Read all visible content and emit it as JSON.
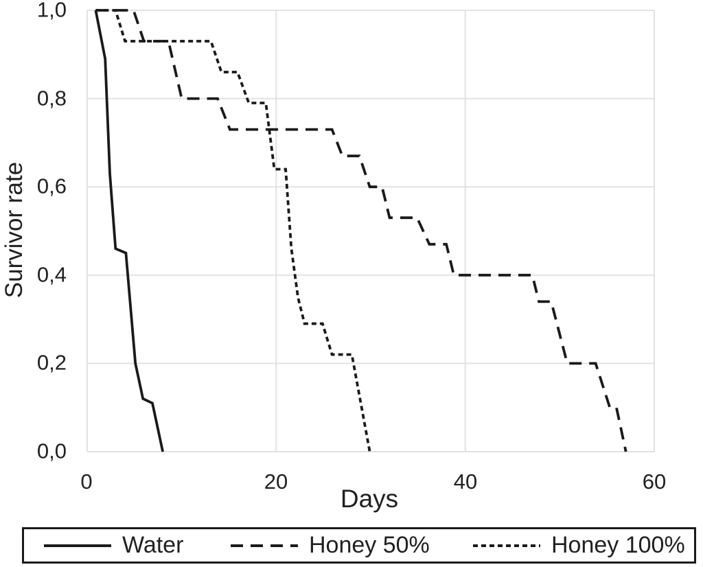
{
  "chart_data": {
    "type": "line",
    "subtype": "survival-step-curves",
    "title": "",
    "xlabel": "Days",
    "ylabel": "Survivor rate",
    "xlim": [
      0,
      60
    ],
    "ylim": [
      0.0,
      1.0
    ],
    "xticks": [
      0,
      20,
      40,
      60
    ],
    "xtick_labels": [
      "0",
      "20",
      "40",
      "60"
    ],
    "yticks": [
      1.0,
      0.8,
      0.6,
      0.4,
      0.2,
      0.0
    ],
    "ytick_labels": [
      "1,0",
      "0,8",
      "0,6",
      "0,4",
      "0,2",
      "0,0"
    ],
    "decimal_separator": ",",
    "grid": {
      "horizontal": true,
      "vertical": true,
      "color": "#e2e2e2"
    },
    "line_color": "#1a1a1a",
    "legend_position": "bottom-box",
    "series": [
      {
        "name": "Water",
        "dash": "solid",
        "points": [
          [
            0.9,
            1.0
          ],
          [
            1.9,
            0.89
          ],
          [
            2.4,
            0.63
          ],
          [
            3.0,
            0.46
          ],
          [
            4.1,
            0.45
          ],
          [
            5.1,
            0.2
          ],
          [
            5.9,
            0.12
          ],
          [
            6.9,
            0.11
          ],
          [
            8.0,
            0.0
          ]
        ]
      },
      {
        "name": "Honey 50%",
        "dash": "long-dash",
        "points": [
          [
            0.9,
            1.0
          ],
          [
            4.9,
            1.0
          ],
          [
            6.0,
            0.93
          ],
          [
            8.6,
            0.93
          ],
          [
            10.0,
            0.8
          ],
          [
            13.8,
            0.8
          ],
          [
            15.1,
            0.73
          ],
          [
            25.9,
            0.73
          ],
          [
            27.0,
            0.67
          ],
          [
            28.8,
            0.67
          ],
          [
            29.9,
            0.6
          ],
          [
            31.2,
            0.6
          ],
          [
            32.0,
            0.53
          ],
          [
            34.9,
            0.53
          ],
          [
            36.2,
            0.47
          ],
          [
            38.0,
            0.47
          ],
          [
            38.8,
            0.4
          ],
          [
            47.1,
            0.4
          ],
          [
            47.8,
            0.34
          ],
          [
            49.1,
            0.34
          ],
          [
            50.8,
            0.2
          ],
          [
            53.8,
            0.2
          ],
          [
            55.3,
            0.1
          ],
          [
            56.0,
            0.1
          ],
          [
            57.0,
            0.0
          ]
        ]
      },
      {
        "name": "Honey 100%",
        "dash": "short-dash",
        "points": [
          [
            0.9,
            1.0
          ],
          [
            3.0,
            1.0
          ],
          [
            4.0,
            0.93
          ],
          [
            13.1,
            0.93
          ],
          [
            14.2,
            0.86
          ],
          [
            15.9,
            0.86
          ],
          [
            17.1,
            0.79
          ],
          [
            18.9,
            0.79
          ],
          [
            19.8,
            0.64
          ],
          [
            21.0,
            0.64
          ],
          [
            21.6,
            0.46
          ],
          [
            22.3,
            0.35
          ],
          [
            23.0,
            0.29
          ],
          [
            24.9,
            0.29
          ],
          [
            25.9,
            0.22
          ],
          [
            28.0,
            0.22
          ],
          [
            29.9,
            0.0
          ]
        ]
      }
    ]
  }
}
